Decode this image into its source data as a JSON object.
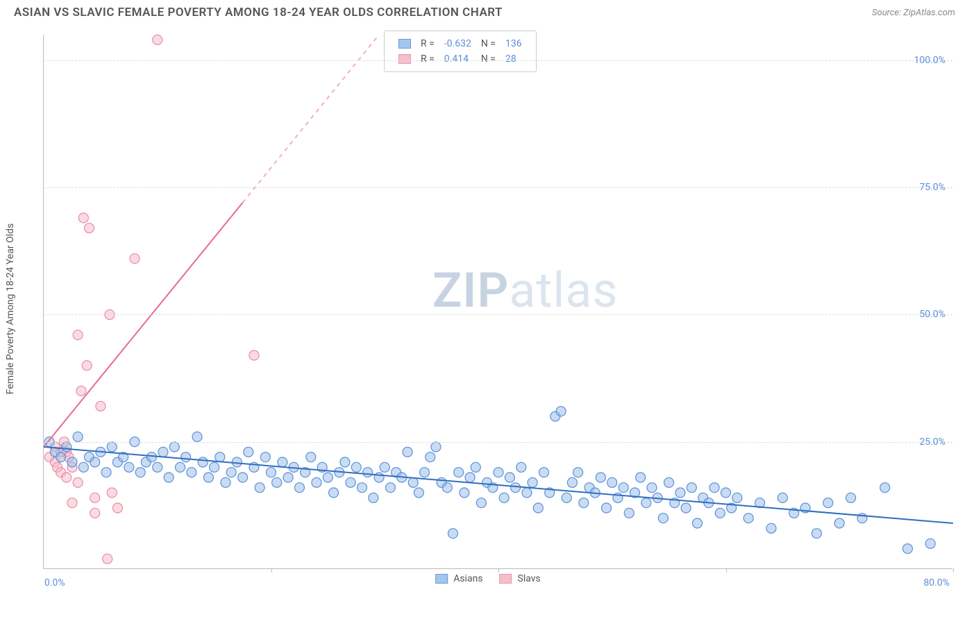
{
  "title": "ASIAN VS SLAVIC FEMALE POVERTY AMONG 18-24 YEAR OLDS CORRELATION CHART",
  "source": "Source: ZipAtlas.com",
  "ylabel": "Female Poverty Among 18-24 Year Olds",
  "watermark_prefix": "ZIP",
  "watermark_suffix": "atlas",
  "chart": {
    "type": "scatter",
    "background_color": "#ffffff",
    "grid_color": "#dddddd",
    "axis_color": "#bbbbbb",
    "tick_label_color": "#5b8fd6",
    "xlim": [
      0,
      80
    ],
    "ylim": [
      0,
      105
    ],
    "xticks": [
      0,
      20,
      40,
      60,
      80
    ],
    "yticks": [
      25,
      50,
      75,
      100
    ],
    "ytick_labels": [
      "25.0%",
      "50.0%",
      "75.0%",
      "100.0%"
    ],
    "x_left_label": "0.0%",
    "x_right_label": "80.0%",
    "marker_radius": 7,
    "marker_stroke_width": 1.2,
    "trend_line_width": 2,
    "series": {
      "asians": {
        "label": "Asians",
        "fill_color": "#9cc0eb",
        "fill_opacity": 0.55,
        "stroke_color": "#5b8fd6",
        "R": "-0.632",
        "N": "136",
        "trend": {
          "x1": 0,
          "y1": 24,
          "x2": 80,
          "y2": 9,
          "color": "#2f6fbf"
        },
        "points": [
          [
            0.5,
            25
          ],
          [
            1,
            23
          ],
          [
            1.5,
            22
          ],
          [
            2,
            24
          ],
          [
            2.5,
            21
          ],
          [
            3,
            26
          ],
          [
            3.5,
            20
          ],
          [
            4,
            22
          ],
          [
            4.5,
            21
          ],
          [
            5,
            23
          ],
          [
            5.5,
            19
          ],
          [
            6,
            24
          ],
          [
            6.5,
            21
          ],
          [
            7,
            22
          ],
          [
            7.5,
            20
          ],
          [
            8,
            25
          ],
          [
            8.5,
            19
          ],
          [
            9,
            21
          ],
          [
            9.5,
            22
          ],
          [
            10,
            20
          ],
          [
            10.5,
            23
          ],
          [
            11,
            18
          ],
          [
            11.5,
            24
          ],
          [
            12,
            20
          ],
          [
            12.5,
            22
          ],
          [
            13,
            19
          ],
          [
            13.5,
            26
          ],
          [
            14,
            21
          ],
          [
            14.5,
            18
          ],
          [
            15,
            20
          ],
          [
            15.5,
            22
          ],
          [
            16,
            17
          ],
          [
            16.5,
            19
          ],
          [
            17,
            21
          ],
          [
            17.5,
            18
          ],
          [
            18,
            23
          ],
          [
            18.5,
            20
          ],
          [
            19,
            16
          ],
          [
            19.5,
            22
          ],
          [
            20,
            19
          ],
          [
            20.5,
            17
          ],
          [
            21,
            21
          ],
          [
            21.5,
            18
          ],
          [
            22,
            20
          ],
          [
            22.5,
            16
          ],
          [
            23,
            19
          ],
          [
            23.5,
            22
          ],
          [
            24,
            17
          ],
          [
            24.5,
            20
          ],
          [
            25,
            18
          ],
          [
            25.5,
            15
          ],
          [
            26,
            19
          ],
          [
            26.5,
            21
          ],
          [
            27,
            17
          ],
          [
            27.5,
            20
          ],
          [
            28,
            16
          ],
          [
            28.5,
            19
          ],
          [
            29,
            14
          ],
          [
            29.5,
            18
          ],
          [
            30,
            20
          ],
          [
            30.5,
            16
          ],
          [
            31,
            19
          ],
          [
            31.5,
            18
          ],
          [
            32,
            23
          ],
          [
            32.5,
            17
          ],
          [
            33,
            15
          ],
          [
            33.5,
            19
          ],
          [
            34,
            22
          ],
          [
            34.5,
            24
          ],
          [
            35,
            17
          ],
          [
            35.5,
            16
          ],
          [
            36,
            7
          ],
          [
            36.5,
            19
          ],
          [
            37,
            15
          ],
          [
            37.5,
            18
          ],
          [
            38,
            20
          ],
          [
            38.5,
            13
          ],
          [
            39,
            17
          ],
          [
            39.5,
            16
          ],
          [
            40,
            19
          ],
          [
            40.5,
            14
          ],
          [
            41,
            18
          ],
          [
            41.5,
            16
          ],
          [
            42,
            20
          ],
          [
            42.5,
            15
          ],
          [
            43,
            17
          ],
          [
            43.5,
            12
          ],
          [
            44,
            19
          ],
          [
            44.5,
            15
          ],
          [
            45,
            30
          ],
          [
            45.5,
            31
          ],
          [
            46,
            14
          ],
          [
            46.5,
            17
          ],
          [
            47,
            19
          ],
          [
            47.5,
            13
          ],
          [
            48,
            16
          ],
          [
            48.5,
            15
          ],
          [
            49,
            18
          ],
          [
            49.5,
            12
          ],
          [
            50,
            17
          ],
          [
            50.5,
            14
          ],
          [
            51,
            16
          ],
          [
            51.5,
            11
          ],
          [
            52,
            15
          ],
          [
            52.5,
            18
          ],
          [
            53,
            13
          ],
          [
            53.5,
            16
          ],
          [
            54,
            14
          ],
          [
            54.5,
            10
          ],
          [
            55,
            17
          ],
          [
            55.5,
            13
          ],
          [
            56,
            15
          ],
          [
            56.5,
            12
          ],
          [
            57,
            16
          ],
          [
            57.5,
            9
          ],
          [
            58,
            14
          ],
          [
            58.5,
            13
          ],
          [
            59,
            16
          ],
          [
            59.5,
            11
          ],
          [
            60,
            15
          ],
          [
            60.5,
            12
          ],
          [
            61,
            14
          ],
          [
            62,
            10
          ],
          [
            63,
            13
          ],
          [
            64,
            8
          ],
          [
            65,
            14
          ],
          [
            66,
            11
          ],
          [
            67,
            12
          ],
          [
            68,
            7
          ],
          [
            69,
            13
          ],
          [
            70,
            9
          ],
          [
            71,
            14
          ],
          [
            72,
            10
          ],
          [
            74,
            16
          ],
          [
            76,
            4
          ],
          [
            78,
            5
          ]
        ]
      },
      "slavs": {
        "label": "Slavs",
        "fill_color": "#f5b8c6",
        "fill_opacity": 0.5,
        "stroke_color": "#e88ba3",
        "R": "0.414",
        "N": "28",
        "trend_solid": {
          "x1": 0,
          "y1": 24,
          "x2": 17.5,
          "y2": 72,
          "color": "#e76a8f"
        },
        "trend_dashed": {
          "x1": 17.5,
          "y1": 72,
          "x2": 29.5,
          "y2": 105,
          "color": "#f0b0c0"
        },
        "points": [
          [
            0.5,
            22
          ],
          [
            1,
            21
          ],
          [
            1,
            24
          ],
          [
            1.2,
            20
          ],
          [
            1.5,
            23
          ],
          [
            1.5,
            19
          ],
          [
            1.8,
            25
          ],
          [
            2,
            18
          ],
          [
            2,
            23
          ],
          [
            2.2,
            22
          ],
          [
            2.5,
            13
          ],
          [
            2.5,
            20
          ],
          [
            3,
            46
          ],
          [
            3,
            17
          ],
          [
            3.3,
            35
          ],
          [
            3.5,
            69
          ],
          [
            3.8,
            40
          ],
          [
            4,
            67
          ],
          [
            4.5,
            11
          ],
          [
            4.5,
            14
          ],
          [
            5,
            32
          ],
          [
            5.6,
            2
          ],
          [
            5.8,
            50
          ],
          [
            6,
            15
          ],
          [
            6.5,
            12
          ],
          [
            8,
            61
          ],
          [
            10,
            104
          ],
          [
            18.5,
            42
          ]
        ]
      }
    }
  },
  "stats_legend": {
    "R_label": "R =",
    "N_label": "N ="
  },
  "bottom_legend": {
    "items": [
      "asians",
      "slavs"
    ]
  }
}
